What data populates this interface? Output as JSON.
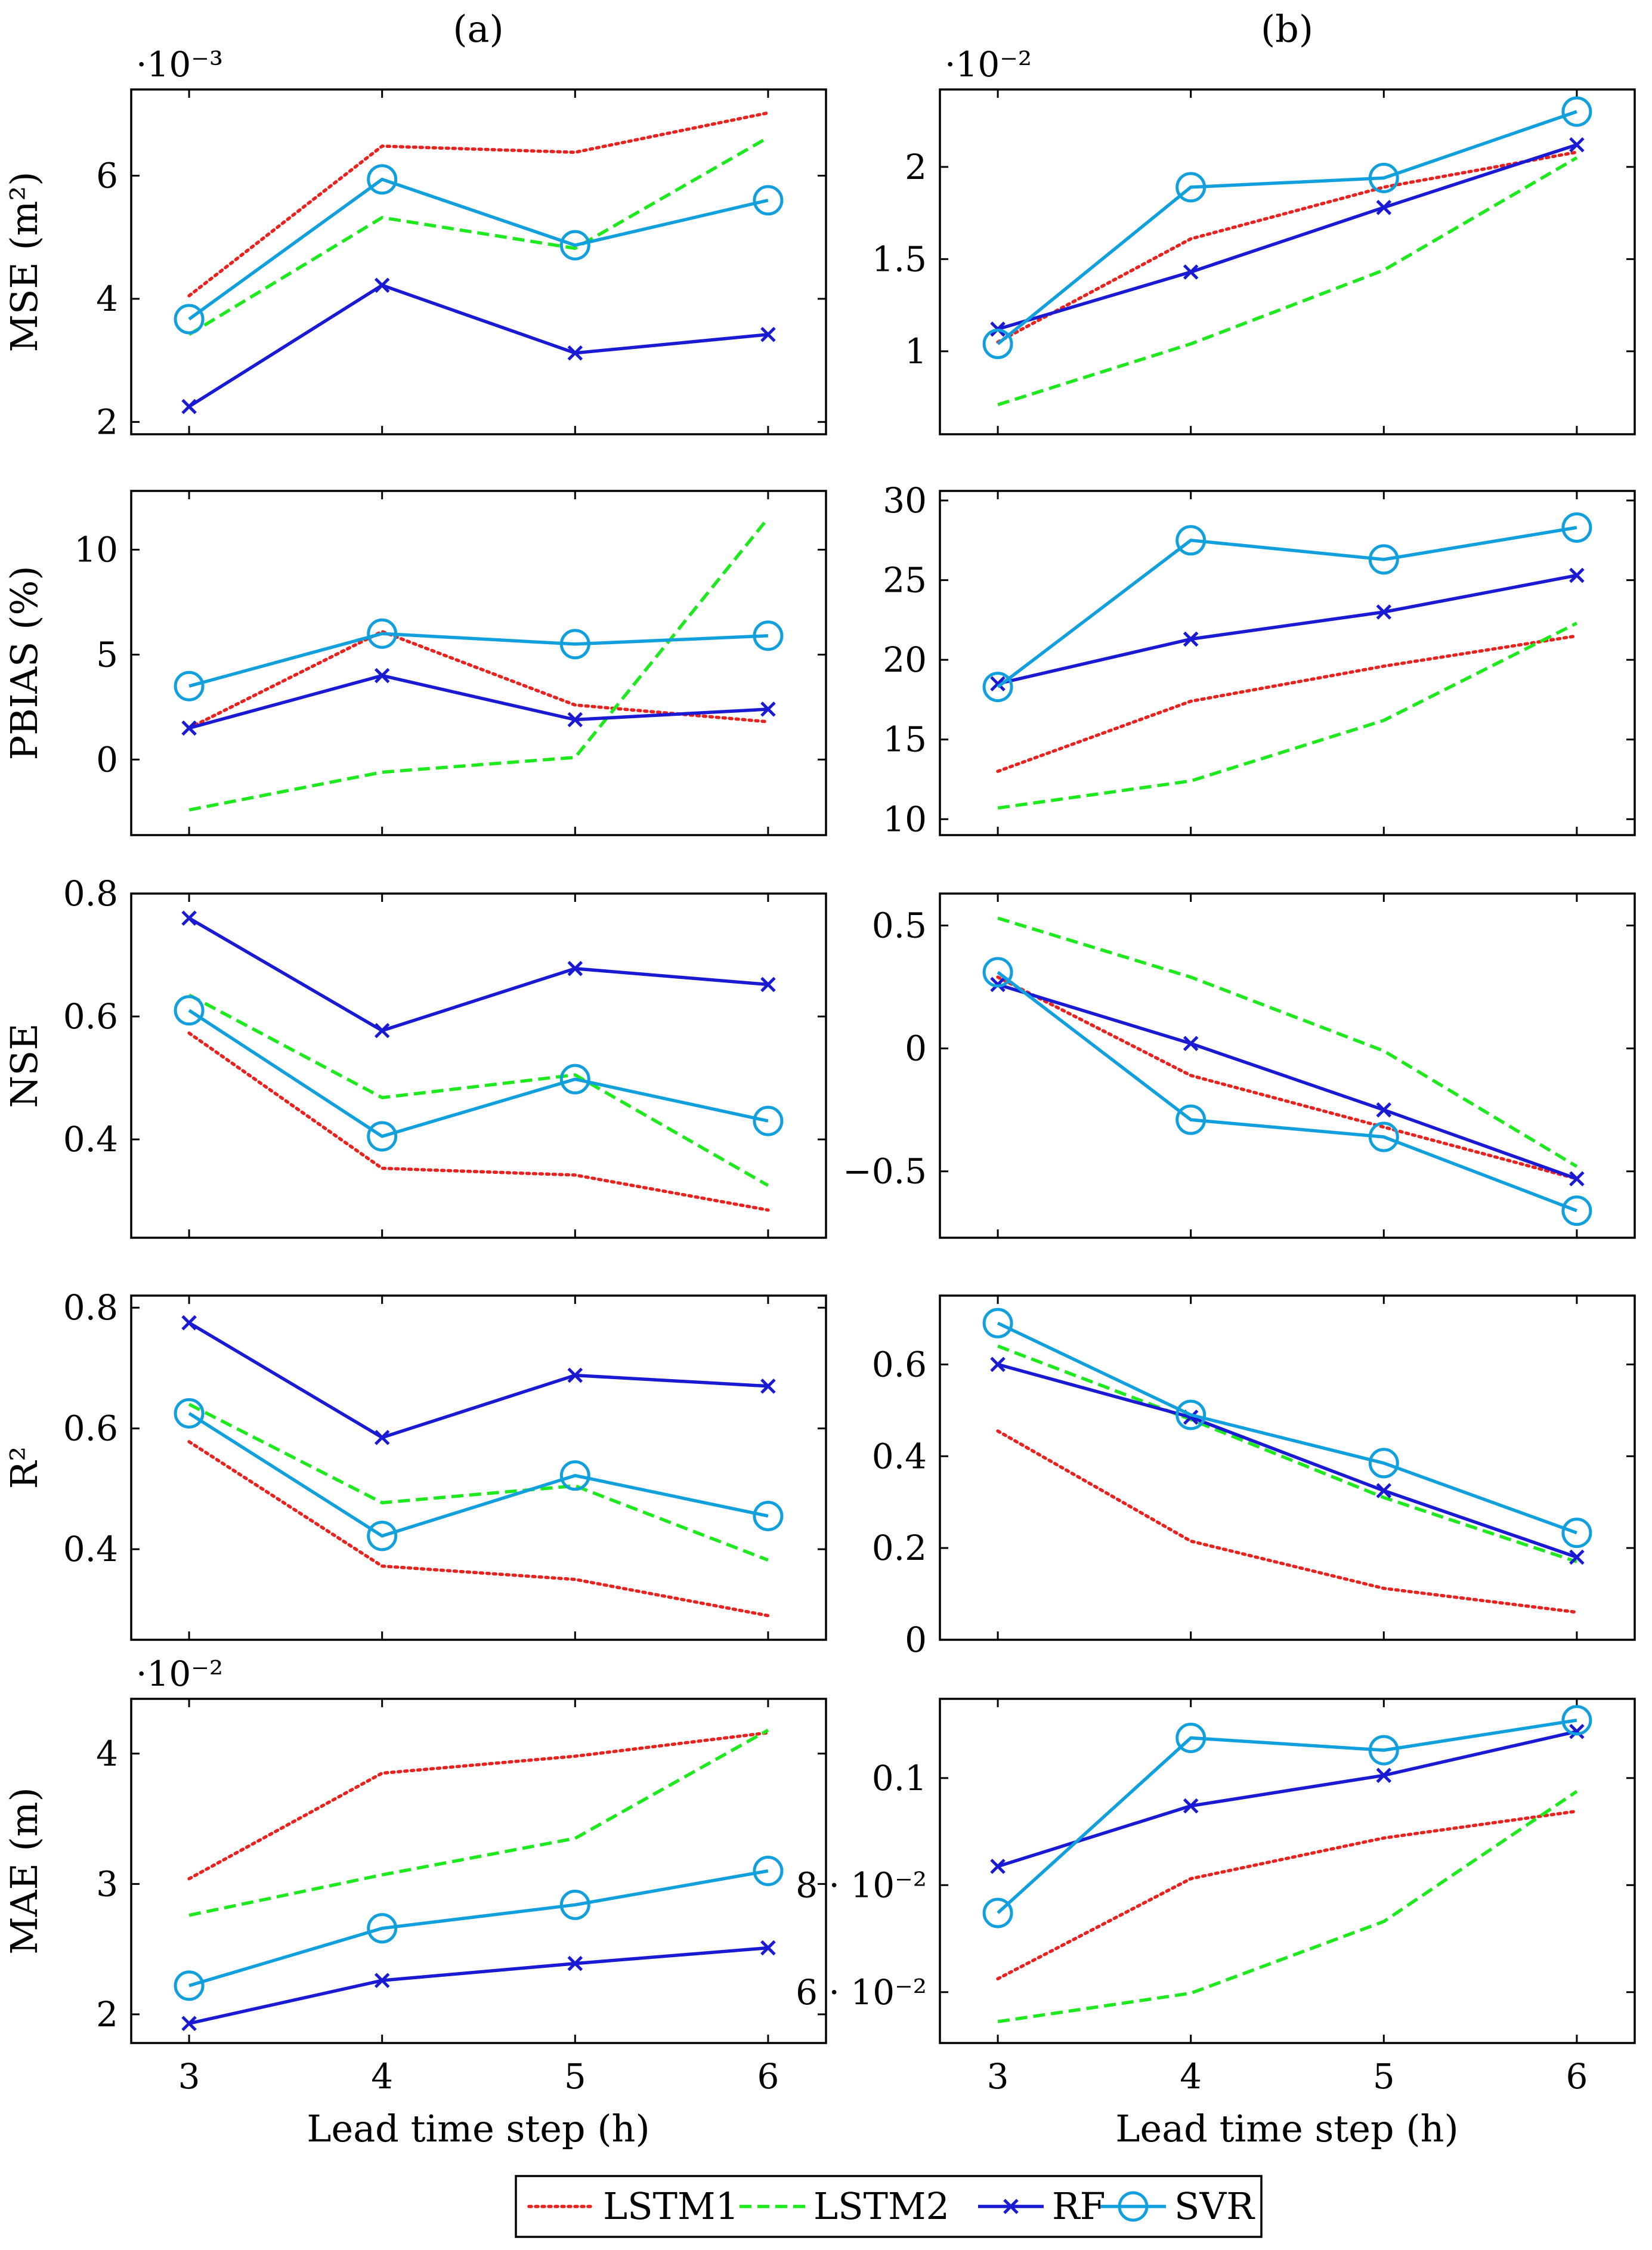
{
  "figure": {
    "column_labels": [
      "(a)",
      "(b)"
    ],
    "xlabel": "Lead time step (h)",
    "legend": [
      {
        "name": "LSTM1",
        "color": "#e8231f",
        "style": "dotted",
        "marker": "none"
      },
      {
        "name": "LSTM2",
        "color": "#1ee81e",
        "style": "dashed",
        "marker": "none"
      },
      {
        "name": "RF",
        "color": "#1a1ad2",
        "style": "solid",
        "marker": "x"
      },
      {
        "name": "SVR",
        "color": "#12a0dc",
        "style": "solid",
        "marker": "circle"
      }
    ]
  },
  "chart_data": [
    {
      "type": "line",
      "id": "mse-a",
      "column": "(a)",
      "ylabel": "MSE (m²)",
      "scale_label": "·10⁻³",
      "x": [
        3,
        4,
        5,
        6
      ],
      "xlim": [
        2.7,
        6.3
      ],
      "ylim": [
        1.8,
        7.4
      ],
      "yticks": [
        2,
        4,
        6
      ],
      "ytick_labels": [
        "2",
        "4",
        "6"
      ],
      "xticks": [
        3,
        4,
        5,
        6
      ],
      "xtick_labels": [],
      "series": [
        {
          "name": "LSTM1",
          "values": [
            4.05,
            6.48,
            6.38,
            7.02
          ]
        },
        {
          "name": "LSTM2",
          "values": [
            3.42,
            5.32,
            4.82,
            6.62
          ]
        },
        {
          "name": "RF",
          "values": [
            2.25,
            4.22,
            3.12,
            3.42
          ]
        },
        {
          "name": "SVR",
          "values": [
            3.67,
            5.94,
            4.87,
            5.6
          ]
        }
      ]
    },
    {
      "type": "line",
      "id": "mse-b",
      "column": "(b)",
      "ylabel": "",
      "scale_label": "·10⁻²",
      "x": [
        3,
        4,
        5,
        6
      ],
      "xlim": [
        2.7,
        6.3
      ],
      "ylim": [
        0.55,
        2.42
      ],
      "yticks": [
        1,
        1.5,
        2
      ],
      "ytick_labels": [
        "1",
        "1.5",
        "2"
      ],
      "xticks": [
        3,
        4,
        5,
        6
      ],
      "xtick_labels": [],
      "series": [
        {
          "name": "LSTM1",
          "values": [
            1.05,
            1.61,
            1.89,
            2.08
          ]
        },
        {
          "name": "LSTM2",
          "values": [
            0.71,
            1.04,
            1.44,
            2.05
          ]
        },
        {
          "name": "RF",
          "values": [
            1.12,
            1.43,
            1.78,
            2.12
          ]
        },
        {
          "name": "SVR",
          "values": [
            1.04,
            1.89,
            1.94,
            2.3
          ]
        }
      ]
    },
    {
      "type": "line",
      "id": "pbias-a",
      "column": "(a)",
      "ylabel": "PBIAS (%)",
      "scale_label": "",
      "x": [
        3,
        4,
        5,
        6
      ],
      "xlim": [
        2.7,
        6.3
      ],
      "ylim": [
        -3.6,
        12.8
      ],
      "yticks": [
        0,
        5,
        10
      ],
      "ytick_labels": [
        "0",
        "5",
        "10"
      ],
      "xticks": [
        3,
        4,
        5,
        6
      ],
      "xtick_labels": [],
      "series": [
        {
          "name": "LSTM1",
          "values": [
            1.5,
            6.1,
            2.6,
            1.8
          ]
        },
        {
          "name": "LSTM2",
          "values": [
            -2.4,
            -0.6,
            0.1,
            11.5
          ]
        },
        {
          "name": "RF",
          "values": [
            1.5,
            4.0,
            1.9,
            2.4
          ]
        },
        {
          "name": "SVR",
          "values": [
            3.5,
            6.0,
            5.5,
            5.9
          ]
        }
      ]
    },
    {
      "type": "line",
      "id": "pbias-b",
      "column": "(b)",
      "ylabel": "",
      "scale_label": "",
      "x": [
        3,
        4,
        5,
        6
      ],
      "xlim": [
        2.7,
        6.3
      ],
      "ylim": [
        9.0,
        30.6
      ],
      "yticks": [
        10,
        15,
        20,
        25,
        30
      ],
      "ytick_labels": [
        "10",
        "15",
        "20",
        "25",
        "30"
      ],
      "xticks": [
        3,
        4,
        5,
        6
      ],
      "xtick_labels": [],
      "series": [
        {
          "name": "LSTM1",
          "values": [
            13.0,
            17.4,
            19.6,
            21.5
          ]
        },
        {
          "name": "LSTM2",
          "values": [
            10.7,
            12.4,
            16.2,
            22.3
          ]
        },
        {
          "name": "RF",
          "values": [
            18.5,
            21.3,
            23.0,
            25.3
          ]
        },
        {
          "name": "SVR",
          "values": [
            18.3,
            27.5,
            26.3,
            28.3
          ]
        }
      ]
    },
    {
      "type": "line",
      "id": "nse-a",
      "column": "(a)",
      "ylabel": "NSE",
      "scale_label": "",
      "x": [
        3,
        4,
        5,
        6
      ],
      "xlim": [
        2.7,
        6.3
      ],
      "ylim": [
        0.24,
        0.8
      ],
      "yticks": [
        0.4,
        0.6,
        0.8
      ],
      "ytick_labels": [
        "0.4",
        "0.6",
        "0.8"
      ],
      "xticks": [
        3,
        4,
        5,
        6
      ],
      "xtick_labels": [],
      "series": [
        {
          "name": "LSTM1",
          "values": [
            0.573,
            0.353,
            0.342,
            0.285
          ]
        },
        {
          "name": "LSTM2",
          "values": [
            0.635,
            0.468,
            0.505,
            0.325
          ]
        },
        {
          "name": "RF",
          "values": [
            0.76,
            0.577,
            0.678,
            0.652
          ]
        },
        {
          "name": "SVR",
          "values": [
            0.61,
            0.405,
            0.498,
            0.43
          ]
        }
      ]
    },
    {
      "type": "line",
      "id": "nse-b",
      "column": "(b)",
      "ylabel": "",
      "scale_label": "",
      "x": [
        3,
        4,
        5,
        6
      ],
      "xlim": [
        2.7,
        6.3
      ],
      "ylim": [
        -0.77,
        0.63
      ],
      "yticks": [
        -0.5,
        0,
        0.5
      ],
      "ytick_labels": [
        "−0.5",
        "0",
        "0.5"
      ],
      "xticks": [
        3,
        4,
        5,
        6
      ],
      "xtick_labels": [],
      "series": [
        {
          "name": "LSTM1",
          "values": [
            0.29,
            -0.11,
            -0.32,
            -0.53
          ]
        },
        {
          "name": "LSTM2",
          "values": [
            0.53,
            0.29,
            -0.01,
            -0.48
          ]
        },
        {
          "name": "RF",
          "values": [
            0.26,
            0.02,
            -0.25,
            -0.53
          ]
        },
        {
          "name": "SVR",
          "values": [
            0.31,
            -0.29,
            -0.36,
            -0.66
          ]
        }
      ]
    },
    {
      "type": "line",
      "id": "r2-a",
      "column": "(a)",
      "ylabel": "R²",
      "scale_label": "",
      "x": [
        3,
        4,
        5,
        6
      ],
      "xlim": [
        2.7,
        6.3
      ],
      "ylim": [
        0.25,
        0.82
      ],
      "yticks": [
        0.4,
        0.6,
        0.8
      ],
      "ytick_labels": [
        "0.4",
        "0.6",
        "0.8"
      ],
      "xticks": [
        3,
        4,
        5,
        6
      ],
      "xtick_labels": [],
      "series": [
        {
          "name": "LSTM1",
          "values": [
            0.578,
            0.372,
            0.35,
            0.29
          ]
        },
        {
          "name": "LSTM2",
          "values": [
            0.64,
            0.477,
            0.505,
            0.382
          ]
        },
        {
          "name": "RF",
          "values": [
            0.775,
            0.585,
            0.688,
            0.67
          ]
        },
        {
          "name": "SVR",
          "values": [
            0.625,
            0.422,
            0.522,
            0.455
          ]
        }
      ]
    },
    {
      "type": "line",
      "id": "r2-b",
      "column": "(b)",
      "ylabel": "",
      "scale_label": "",
      "x": [
        3,
        4,
        5,
        6
      ],
      "xlim": [
        2.7,
        6.3
      ],
      "ylim": [
        0,
        0.75
      ],
      "yticks": [
        0,
        0.2,
        0.4,
        0.6
      ],
      "ytick_labels": [
        "0",
        "0.2",
        "0.4",
        "0.6"
      ],
      "xticks": [
        3,
        4,
        5,
        6
      ],
      "xtick_labels": [],
      "series": [
        {
          "name": "LSTM1",
          "values": [
            0.455,
            0.215,
            0.112,
            0.06
          ]
        },
        {
          "name": "LSTM2",
          "values": [
            0.64,
            0.48,
            0.31,
            0.17
          ]
        },
        {
          "name": "RF",
          "values": [
            0.6,
            0.485,
            0.325,
            0.18
          ]
        },
        {
          "name": "SVR",
          "values": [
            0.69,
            0.49,
            0.385,
            0.233
          ]
        }
      ]
    },
    {
      "type": "line",
      "id": "mae-a",
      "column": "(a)",
      "ylabel": "MAE (m)",
      "scale_label": "·10⁻²",
      "x": [
        3,
        4,
        5,
        6
      ],
      "xlim": [
        2.7,
        6.3
      ],
      "ylim": [
        1.78,
        4.42
      ],
      "yticks": [
        2,
        3,
        4
      ],
      "ytick_labels": [
        "2",
        "3",
        "4"
      ],
      "xticks": [
        3,
        4,
        5,
        6
      ],
      "xtick_labels": [
        "3",
        "4",
        "5",
        "6"
      ],
      "series": [
        {
          "name": "LSTM1",
          "values": [
            3.04,
            3.85,
            3.98,
            4.16
          ]
        },
        {
          "name": "LSTM2",
          "values": [
            2.76,
            3.07,
            3.35,
            4.18
          ]
        },
        {
          "name": "RF",
          "values": [
            1.93,
            2.26,
            2.39,
            2.51
          ]
        },
        {
          "name": "SVR",
          "values": [
            2.22,
            2.66,
            2.84,
            3.1
          ]
        }
      ]
    },
    {
      "type": "line",
      "id": "mae-b",
      "column": "(b)",
      "ylabel": "",
      "scale_label": "",
      "x": [
        3,
        4,
        5,
        6
      ],
      "xlim": [
        2.7,
        6.3
      ],
      "ylim": [
        0.0505,
        0.1148
      ],
      "yticks": [
        0.06,
        0.08,
        0.1
      ],
      "ytick_labels": [
        "6 · 10⁻²",
        "8 · 10⁻²",
        "0.1"
      ],
      "xticks": [
        3,
        4,
        5,
        6
      ],
      "xtick_labels": [
        "3",
        "4",
        "5",
        "6"
      ],
      "series": [
        {
          "name": "LSTM1",
          "values": [
            0.0625,
            0.0812,
            0.0888,
            0.0938
          ]
        },
        {
          "name": "LSTM2",
          "values": [
            0.0545,
            0.0598,
            0.0732,
            0.0975
          ]
        },
        {
          "name": "RF",
          "values": [
            0.0835,
            0.0948,
            0.1005,
            0.1087
          ]
        },
        {
          "name": "SVR",
          "values": [
            0.0748,
            0.1075,
            0.1052,
            0.1108
          ]
        }
      ]
    }
  ]
}
